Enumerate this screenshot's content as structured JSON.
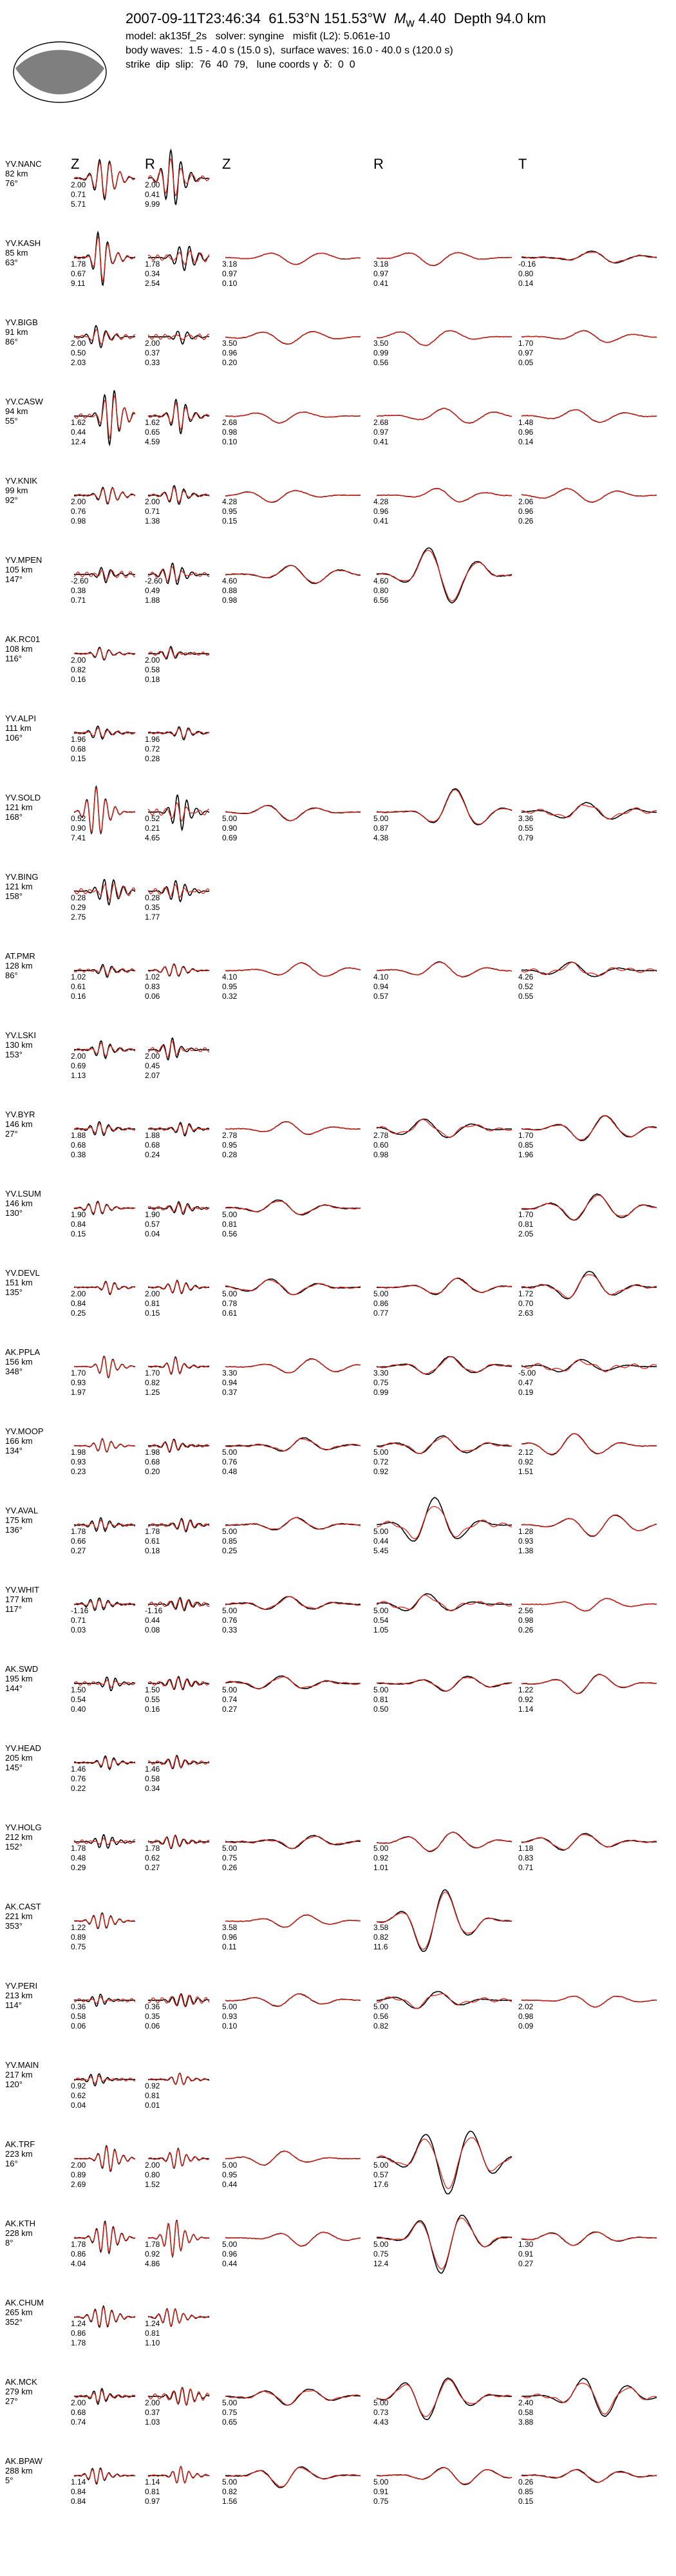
{
  "header": {
    "event": "2007-09-11T23:46:34  61.53°N 151.53°W",
    "mw_label": "M",
    "mw_sub": "w",
    "mw_value": "4.40",
    "depth": "Depth 94.0 km",
    "line2": "model: ak135f_2s   solver: syngine   misfit (L2): 5.061e-10",
    "line3": "body waves:  1.5 - 4.0 s (15.0 s),  surface waves: 16.0 - 40.0 s (120.0 s)",
    "line4": "strike  dip  slip:  76  40  79,   lune coords γ  δ:  0  0"
  },
  "colors": {
    "data": "#000000",
    "synthetic": "#e0261b",
    "beachball": "#7f7f7f"
  },
  "columns": [
    "Z",
    "R",
    "Z",
    "R",
    "T"
  ],
  "chart_data": {
    "type": "waveform-grid",
    "stations": [
      {
        "name": "YV.NANC",
        "dist": "82 km",
        "az": "76°",
        "traces": [
          [
            "2.00",
            "0.71",
            "5.71"
          ],
          [
            "2.00",
            "0.41",
            "9.99"
          ],
          null,
          null,
          null
        ]
      },
      {
        "name": "YV.KASH",
        "dist": "85 km",
        "az": "63°",
        "traces": [
          [
            "1.78",
            "0.67",
            "9.11"
          ],
          [
            "1.78",
            "0.34",
            "2.54"
          ],
          [
            "3.18",
            "0.97",
            "0.10"
          ],
          [
            "3.18",
            "0.97",
            "0.41"
          ],
          [
            "-0.16",
            "0.80",
            "0.14"
          ]
        ]
      },
      {
        "name": "YV.BIGB",
        "dist": "91 km",
        "az": "86°",
        "traces": [
          [
            "2.00",
            "0.50",
            "2.03"
          ],
          [
            "2.00",
            "0.37",
            "0.33"
          ],
          [
            "3.50",
            "0.96",
            "0.20"
          ],
          [
            "3.50",
            "0.99",
            "0.56"
          ],
          [
            "1.70",
            "0.97",
            "0.05"
          ]
        ]
      },
      {
        "name": "YV.CASW",
        "dist": "94 km",
        "az": "55°",
        "traces": [
          [
            "1.62",
            "0.44",
            "12.4"
          ],
          [
            "1.62",
            "0.65",
            "4.59"
          ],
          [
            "2.68",
            "0.98",
            "0.10"
          ],
          [
            "2.68",
            "0.97",
            "0.41"
          ],
          [
            "1.48",
            "0.96",
            "0.14"
          ]
        ]
      },
      {
        "name": "YV.KNIK",
        "dist": "99 km",
        "az": "92°",
        "traces": [
          [
            "2.00",
            "0.76",
            "0.98"
          ],
          [
            "2.00",
            "0.71",
            "1.38"
          ],
          [
            "4.28",
            "0.95",
            "0.15"
          ],
          [
            "4.28",
            "0.96",
            "0.41"
          ],
          [
            "2.06",
            "0.96",
            "0.26"
          ]
        ]
      },
      {
        "name": "YV.MPEN",
        "dist": "105 km",
        "az": "147°",
        "traces": [
          [
            "-2.60",
            "0.38",
            "0.71"
          ],
          [
            "-2.60",
            "0.49",
            "1.88"
          ],
          [
            "4.60",
            "0.88",
            "0.98"
          ],
          [
            "4.60",
            "0.80",
            "6.56"
          ],
          null
        ]
      },
      {
        "name": "AK.RC01",
        "dist": "108 km",
        "az": "116°",
        "traces": [
          [
            "2.00",
            "0.82",
            "0.16"
          ],
          [
            "2.00",
            "0.58",
            "0.18"
          ],
          null,
          null,
          null
        ]
      },
      {
        "name": "YV.ALPI",
        "dist": "111 km",
        "az": "106°",
        "traces": [
          [
            "1.96",
            "0.68",
            "0.15"
          ],
          [
            "1.96",
            "0.72",
            "0.28"
          ],
          null,
          null,
          null
        ]
      },
      {
        "name": "YV.SOLD",
        "dist": "121 km",
        "az": "168°",
        "traces": [
          [
            "0.52",
            "0.90",
            "7.41"
          ],
          [
            "0.52",
            "0.21",
            "4.65"
          ],
          [
            "5.00",
            "0.90",
            "0.69"
          ],
          [
            "5.00",
            "0.87",
            "4.38"
          ],
          [
            "3.36",
            "0.55",
            "0.79"
          ]
        ]
      },
      {
        "name": "YV.BING",
        "dist": "121 km",
        "az": "158°",
        "traces": [
          [
            "0.28",
            "0.29",
            "2.75"
          ],
          [
            "0.28",
            "0.35",
            "1.77"
          ],
          null,
          null,
          null
        ]
      },
      {
        "name": "AT.PMR",
        "dist": "128 km",
        "az": "86°",
        "traces": [
          [
            "1.02",
            "0.61",
            "0.16"
          ],
          [
            "1.02",
            "0.83",
            "0.06"
          ],
          [
            "4.10",
            "0.95",
            "0.32"
          ],
          [
            "4.10",
            "0.94",
            "0.57"
          ],
          [
            "4.26",
            "0.52",
            "0.55"
          ]
        ]
      },
      {
        "name": "YV.LSKI",
        "dist": "130 km",
        "az": "153°",
        "traces": [
          [
            "2.00",
            "0.69",
            "1.13"
          ],
          [
            "2.00",
            "0.45",
            "2.07"
          ],
          null,
          null,
          null
        ]
      },
      {
        "name": "YV.BYR",
        "dist": "146 km",
        "az": "27°",
        "traces": [
          [
            "1.88",
            "0.68",
            "0.38"
          ],
          [
            "1.88",
            "0.68",
            "0.24"
          ],
          [
            "2.78",
            "0.95",
            "0.28"
          ],
          [
            "2.78",
            "0.60",
            "0.98"
          ],
          [
            "1.70",
            "0.85",
            "1.96"
          ]
        ]
      },
      {
        "name": "YV.LSUM",
        "dist": "146 km",
        "az": "130°",
        "traces": [
          [
            "1.90",
            "0.84",
            "0.15"
          ],
          [
            "1.90",
            "0.57",
            "0.04"
          ],
          [
            "5.00",
            "0.81",
            "0.56"
          ],
          null,
          [
            "1.70",
            "0.81",
            "2.05"
          ]
        ]
      },
      {
        "name": "YV.DEVL",
        "dist": "151 km",
        "az": "135°",
        "traces": [
          [
            "2.00",
            "0.84",
            "0.25"
          ],
          [
            "2.00",
            "0.81",
            "0.15"
          ],
          [
            "5.00",
            "0.78",
            "0.61"
          ],
          [
            "5.00",
            "0.86",
            "0.77"
          ],
          [
            "1.72",
            "0.70",
            "2.63"
          ]
        ]
      },
      {
        "name": "AK.PPLA",
        "dist": "156 km",
        "az": "348°",
        "traces": [
          [
            "1.70",
            "0.93",
            "1.97"
          ],
          [
            "1.70",
            "0.82",
            "1.25"
          ],
          [
            "3.30",
            "0.94",
            "0.37"
          ],
          [
            "3.30",
            "0.75",
            "0.99"
          ],
          [
            "-5.00",
            "0.47",
            "0.19"
          ]
        ]
      },
      {
        "name": "YV.MOOP",
        "dist": "166 km",
        "az": "134°",
        "traces": [
          [
            "1.98",
            "0.93",
            "0.23"
          ],
          [
            "1.98",
            "0.68",
            "0.20"
          ],
          [
            "5.00",
            "0.76",
            "0.48"
          ],
          [
            "5.00",
            "0.72",
            "0.92"
          ],
          [
            "2.12",
            "0.92",
            "1.51"
          ]
        ]
      },
      {
        "name": "YV.AVAL",
        "dist": "175 km",
        "az": "136°",
        "traces": [
          [
            "1.78",
            "0.66",
            "0.27"
          ],
          [
            "1.78",
            "0.61",
            "0.18"
          ],
          [
            "5.00",
            "0.85",
            "0.25"
          ],
          [
            "5.00",
            "0.44",
            "5.45"
          ],
          [
            "1.28",
            "0.93",
            "1.38"
          ]
        ]
      },
      {
        "name": "YV.WHIT",
        "dist": "177 km",
        "az": "117°",
        "traces": [
          [
            "-1.16",
            "0.71",
            "0.03"
          ],
          [
            "-1.16",
            "0.44",
            "0.08"
          ],
          [
            "5.00",
            "0.76",
            "0.33"
          ],
          [
            "5.00",
            "0.54",
            "1.05"
          ],
          [
            "2.56",
            "0.98",
            "0.26"
          ]
        ]
      },
      {
        "name": "AK.SWD",
        "dist": "195 km",
        "az": "144°",
        "traces": [
          [
            "1.50",
            "0.54",
            "0.40"
          ],
          [
            "1.50",
            "0.55",
            "0.16"
          ],
          [
            "5.00",
            "0.74",
            "0.27"
          ],
          [
            "5.00",
            "0.81",
            "0.50"
          ],
          [
            "1.22",
            "0.92",
            "1.14"
          ]
        ]
      },
      {
        "name": "YV.HEAD",
        "dist": "205 km",
        "az": "145°",
        "traces": [
          [
            "1.46",
            "0.76",
            "0.22"
          ],
          [
            "1.46",
            "0.58",
            "0.34"
          ],
          null,
          null,
          null
        ]
      },
      {
        "name": "YV.HOLG",
        "dist": "212 km",
        "az": "152°",
        "traces": [
          [
            "1.78",
            "0.48",
            "0.29"
          ],
          [
            "1.78",
            "0.62",
            "0.27"
          ],
          [
            "5.00",
            "0.75",
            "0.26"
          ],
          [
            "5.00",
            "0.92",
            "1.01"
          ],
          [
            "1.18",
            "0.83",
            "0.71"
          ]
        ]
      },
      {
        "name": "AK.CAST",
        "dist": "221 km",
        "az": "353°",
        "traces": [
          [
            "1.22",
            "0.89",
            "0.75"
          ],
          null,
          [
            "3.58",
            "0.96",
            "0.11"
          ],
          [
            "3.58",
            "0.82",
            "11.6"
          ],
          null
        ]
      },
      {
        "name": "YV.PERI",
        "dist": "213 km",
        "az": "114°",
        "traces": [
          [
            "0.36",
            "0.58",
            "0.06"
          ],
          [
            "0.36",
            "0.35",
            "0.06"
          ],
          [
            "5.00",
            "0.93",
            "0.10"
          ],
          [
            "5.00",
            "0.56",
            "0.82"
          ],
          [
            "2.02",
            "0.98",
            "0.09"
          ]
        ]
      },
      {
        "name": "YV.MAIN",
        "dist": "217 km",
        "az": "120°",
        "traces": [
          [
            "0.92",
            "0.62",
            "0.04"
          ],
          [
            "0.92",
            "0.81",
            "0.01"
          ],
          null,
          null,
          null
        ]
      },
      {
        "name": "AK.TRF",
        "dist": "223 km",
        "az": "16°",
        "traces": [
          [
            "2.00",
            "0.89",
            "2.69"
          ],
          [
            "2.00",
            "0.80",
            "1.52"
          ],
          [
            "5.00",
            "0.95",
            "0.44"
          ],
          [
            "5.00",
            "0.57",
            "17.6"
          ],
          null
        ]
      },
      {
        "name": "AK.KTH",
        "dist": "228 km",
        "az": "8°",
        "traces": [
          [
            "1.78",
            "0.86",
            "4.04"
          ],
          [
            "1.78",
            "0.92",
            "4.86"
          ],
          [
            "5.00",
            "0.96",
            "0.44"
          ],
          [
            "5.00",
            "0.75",
            "12.4"
          ],
          [
            "1.30",
            "0.91",
            "0.27"
          ]
        ]
      },
      {
        "name": "AK.CHUM",
        "dist": "265 km",
        "az": "352°",
        "traces": [
          [
            "1.24",
            "0.86",
            "1.78"
          ],
          [
            "1.24",
            "0.81",
            "1.10"
          ],
          null,
          null,
          null
        ]
      },
      {
        "name": "AK.MCK",
        "dist": "279 km",
        "az": "27°",
        "traces": [
          [
            "2.00",
            "0.68",
            "0.74"
          ],
          [
            "2.00",
            "0.37",
            "1.03"
          ],
          [
            "5.00",
            "0.75",
            "0.65"
          ],
          [
            "5.00",
            "0.73",
            "4.43"
          ],
          [
            "2.40",
            "0.58",
            "3.88"
          ]
        ]
      },
      {
        "name": "AK.BPAW",
        "dist": "288 km",
        "az": "5°",
        "traces": [
          [
            "1.14",
            "0.84",
            "0.84"
          ],
          [
            "1.14",
            "0.81",
            "0.97"
          ],
          [
            "5.00",
            "0.82",
            "1.56"
          ],
          [
            "5.00",
            "0.91",
            "0.75"
          ],
          [
            "0.26",
            "0.85",
            "0.15"
          ]
        ]
      }
    ]
  }
}
